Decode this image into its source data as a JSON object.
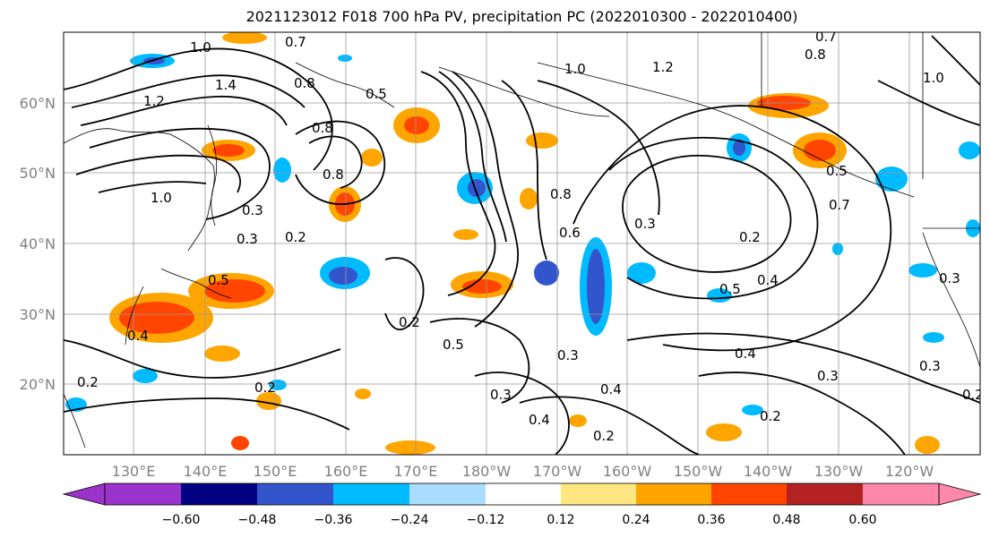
{
  "title": "2021123012 F018 700 hPa PV, precipitation PC (2022010300 - 2022010400)",
  "map": {
    "lat_labels": [
      "60°N",
      "50°N",
      "40°N",
      "30°N",
      "20°N"
    ],
    "lon_labels": [
      "130°E",
      "140°E",
      "150°E",
      "160°E",
      "170°E",
      "180°W",
      "170°W",
      "160°W",
      "150°W",
      "140°W",
      "130°W",
      "120°W"
    ],
    "contour_labels": [
      "1.0",
      "0.7",
      "1.2",
      "1.4",
      "0.8",
      "0.5",
      "1.0",
      "0.8",
      "0.3",
      "0.2",
      "0.3",
      "0.5",
      "0.4",
      "0.2",
      "0.8",
      "0.6",
      "0.8",
      "1.0",
      "1.2",
      "0.7",
      "0.8",
      "1.0",
      "0.5",
      "0.7",
      "0.2",
      "0.3",
      "0.4",
      "0.5",
      "0.4",
      "0.3",
      "0.2",
      "0.5",
      "0.3",
      "0.3",
      "0.4",
      "0.4",
      "0.2",
      "0.2",
      "0.3",
      "0.2",
      "0.3",
      "0.2"
    ]
  },
  "colorbar": {
    "tick_labels": [
      "−0.60",
      "−0.48",
      "−0.36",
      "−0.24",
      "−0.12",
      "0.12",
      "0.24",
      "0.36",
      "0.48",
      "0.60"
    ],
    "colors": [
      "#9933cc",
      "#000080",
      "#3355cc",
      "#00bbff",
      "#aaddff",
      "#ffffff",
      "#ffe680",
      "#ffa500",
      "#ff4500",
      "#b22222",
      "#ff88aa"
    ]
  }
}
